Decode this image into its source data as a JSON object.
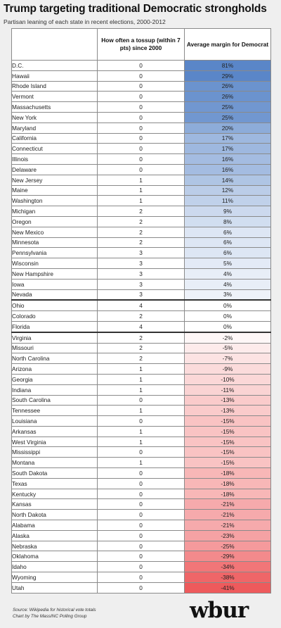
{
  "title": "Trump targeting  traditional Democratic strongholds",
  "subtitle": "Partisan leaning of each state in recent elections, 2000-2012",
  "logo": "wbur",
  "footer": {
    "source": "Source: Wikipedia for historical vote totals",
    "credit": "Chart by The MassINC Polling Group"
  },
  "chart_data": {
    "type": "table",
    "columns": [
      "",
      "How often a tossup (within 7 pts) since 2000",
      "Average margin for Democrat"
    ],
    "colors": {
      "dem_max": "#5a86c8",
      "rep_max": "#ee5a5c",
      "neutral": "#ffffff"
    },
    "rows": [
      {
        "state": "D.C.",
        "tossup": "0",
        "margin": "81%",
        "value": 81
      },
      {
        "state": "Hawaii",
        "tossup": "0",
        "margin": "29%",
        "value": 29
      },
      {
        "state": "Rhode Island",
        "tossup": "0",
        "margin": "26%",
        "value": 26
      },
      {
        "state": "Vermont",
        "tossup": "0",
        "margin": "26%",
        "value": 26
      },
      {
        "state": "Massachusetts",
        "tossup": "0",
        "margin": "25%",
        "value": 25
      },
      {
        "state": "New York",
        "tossup": "0",
        "margin": "25%",
        "value": 25
      },
      {
        "state": "Maryland",
        "tossup": "0",
        "margin": "20%",
        "value": 20
      },
      {
        "state": "California",
        "tossup": "0",
        "margin": "17%",
        "value": 17
      },
      {
        "state": "Connecticut",
        "tossup": "0",
        "margin": "17%",
        "value": 17
      },
      {
        "state": "Illinois",
        "tossup": "0",
        "margin": "16%",
        "value": 16
      },
      {
        "state": "Delaware",
        "tossup": "0",
        "margin": "16%",
        "value": 16
      },
      {
        "state": "New Jersey",
        "tossup": "1",
        "margin": "14%",
        "value": 14
      },
      {
        "state": "Maine",
        "tossup": "1",
        "margin": "12%",
        "value": 12
      },
      {
        "state": "Washington",
        "tossup": "1",
        "margin": "11%",
        "value": 11
      },
      {
        "state": "Michigan",
        "tossup": "2",
        "margin": "9%",
        "value": 9
      },
      {
        "state": "Oregon",
        "tossup": "2",
        "margin": "8%",
        "value": 8
      },
      {
        "state": "New Mexico",
        "tossup": "2",
        "margin": "6%",
        "value": 6
      },
      {
        "state": "Minnesota",
        "tossup": "2",
        "margin": "6%",
        "value": 6
      },
      {
        "state": "Pennsylvania",
        "tossup": "3",
        "margin": "6%",
        "value": 6
      },
      {
        "state": "Wisconsin",
        "tossup": "3",
        "margin": "5%",
        "value": 5
      },
      {
        "state": "New Hampshire",
        "tossup": "3",
        "margin": "4%",
        "value": 4
      },
      {
        "state": "Iowa",
        "tossup": "3",
        "margin": "4%",
        "value": 4
      },
      {
        "state": "Nevada",
        "tossup": "3",
        "margin": "3%",
        "value": 3
      },
      {
        "state": "Ohio",
        "tossup": "4",
        "margin": "0%",
        "value": 0,
        "group_break": true
      },
      {
        "state": "Colorado",
        "tossup": "2",
        "margin": "0%",
        "value": 0
      },
      {
        "state": "Florida",
        "tossup": "4",
        "margin": "0%",
        "value": 0
      },
      {
        "state": "Virginia",
        "tossup": "2",
        "margin": "-2%",
        "value": -2,
        "group_break": true
      },
      {
        "state": "Missouri",
        "tossup": "2",
        "margin": "-5%",
        "value": -5
      },
      {
        "state": "North Carolina",
        "tossup": "2",
        "margin": "-7%",
        "value": -7
      },
      {
        "state": "Arizona",
        "tossup": "1",
        "margin": "-9%",
        "value": -9
      },
      {
        "state": "Georgia",
        "tossup": "1",
        "margin": "-10%",
        "value": -10
      },
      {
        "state": "Indiana",
        "tossup": "1",
        "margin": "-11%",
        "value": -11
      },
      {
        "state": "South Carolina",
        "tossup": "0",
        "margin": "-13%",
        "value": -13
      },
      {
        "state": "Tennessee",
        "tossup": "1",
        "margin": "-13%",
        "value": -13
      },
      {
        "state": "Louisiana",
        "tossup": "0",
        "margin": "-15%",
        "value": -15
      },
      {
        "state": "Arkansas",
        "tossup": "1",
        "margin": "-15%",
        "value": -15
      },
      {
        "state": "West Virginia",
        "tossup": "1",
        "margin": "-15%",
        "value": -15
      },
      {
        "state": "Mississippi",
        "tossup": "0",
        "margin": "-15%",
        "value": -15
      },
      {
        "state": "Montana",
        "tossup": "1",
        "margin": "-15%",
        "value": -15
      },
      {
        "state": "South Dakota",
        "tossup": "0",
        "margin": "-18%",
        "value": -18
      },
      {
        "state": "Texas",
        "tossup": "0",
        "margin": "-18%",
        "value": -18
      },
      {
        "state": "Kentucky",
        "tossup": "0",
        "margin": "-18%",
        "value": -18
      },
      {
        "state": "Kansas",
        "tossup": "0",
        "margin": "-21%",
        "value": -21
      },
      {
        "state": "North Dakota",
        "tossup": "0",
        "margin": "-21%",
        "value": -21
      },
      {
        "state": "Alabama",
        "tossup": "0",
        "margin": "-21%",
        "value": -21
      },
      {
        "state": "Alaska",
        "tossup": "0",
        "margin": "-23%",
        "value": -23
      },
      {
        "state": "Nebraska",
        "tossup": "0",
        "margin": "-25%",
        "value": -25
      },
      {
        "state": "Oklahoma",
        "tossup": "0",
        "margin": "-29%",
        "value": -29
      },
      {
        "state": "Idaho",
        "tossup": "0",
        "margin": "-34%",
        "value": -34
      },
      {
        "state": "Wyoming",
        "tossup": "0",
        "margin": "-38%",
        "value": -38
      },
      {
        "state": "Utah",
        "tossup": "0",
        "margin": "-41%",
        "value": -41
      }
    ]
  }
}
